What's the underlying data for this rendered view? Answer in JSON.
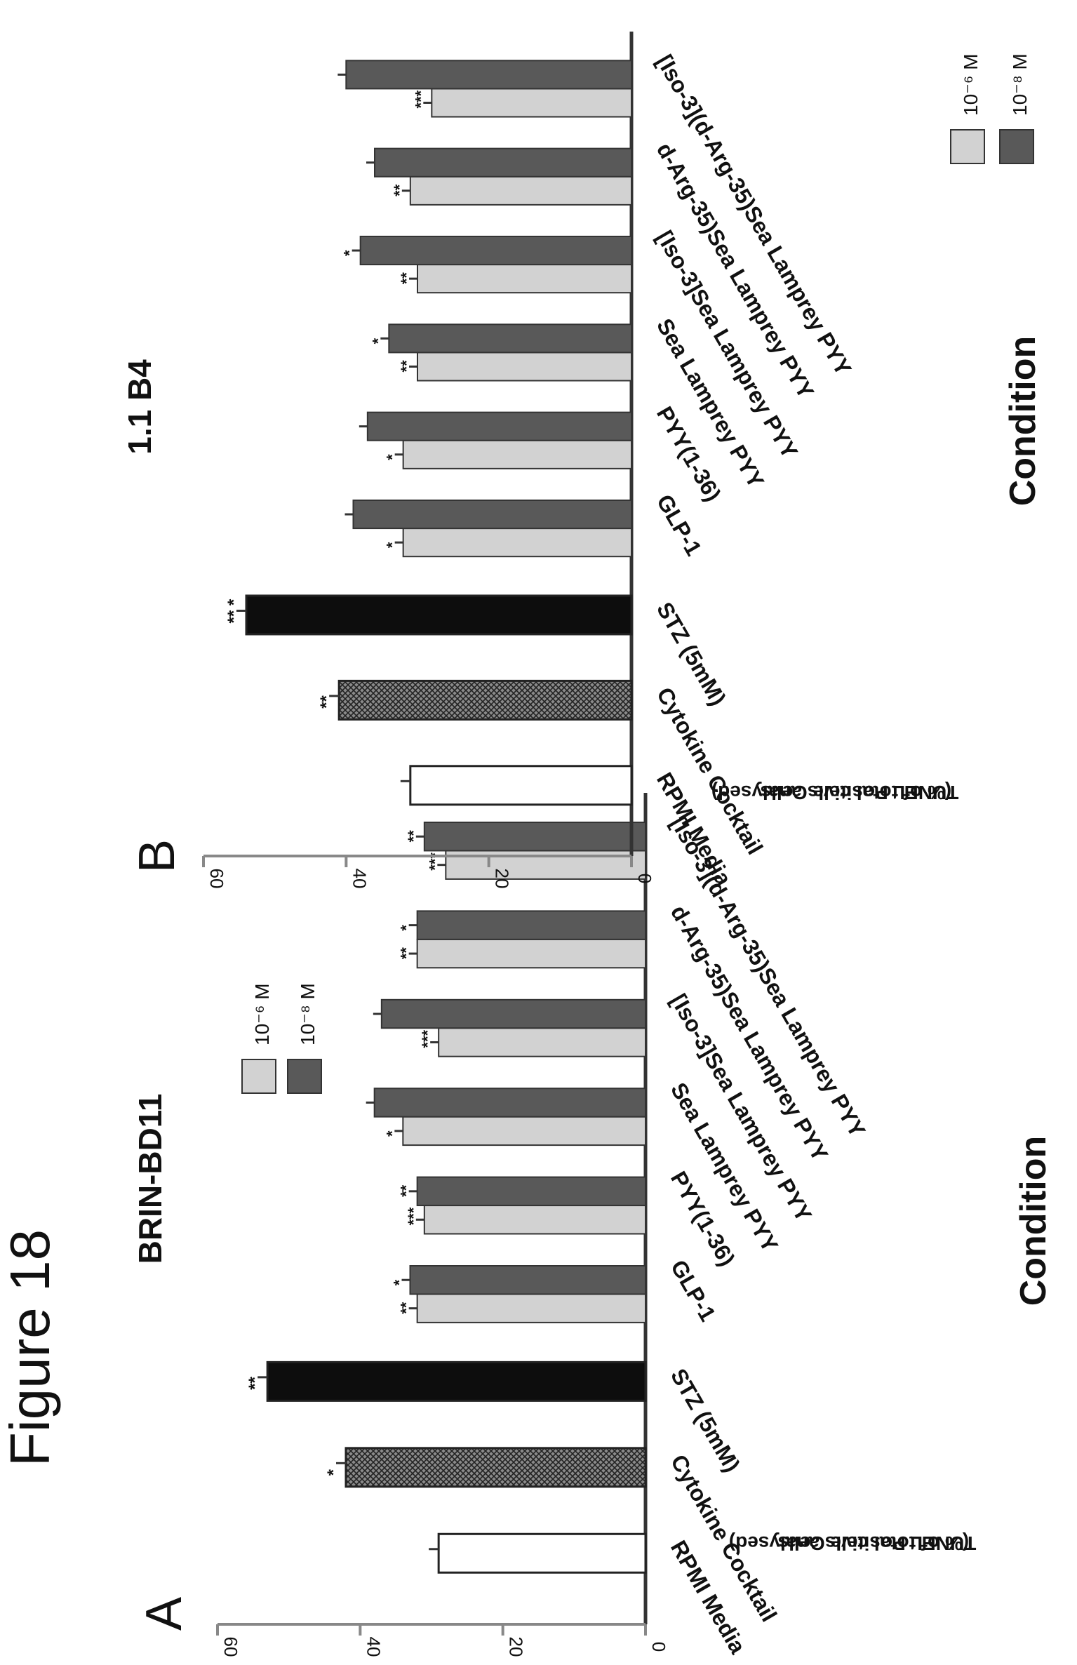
{
  "figure_title": "Figure 18",
  "legend_labels": [
    "10⁻⁶ M",
    "10⁻⁸ M"
  ],
  "chart_data": [
    {
      "type": "bar",
      "panel_label": "A",
      "title": "BRIN-BD11",
      "xlabel": "Condition",
      "ylabel_line1": "TUNEL Positive Cells",
      "ylabel_line2": "(% of total cells analysed)",
      "ylim": [
        0,
        60
      ],
      "yticks": [
        "0",
        "20",
        "40",
        "60"
      ],
      "grid": false,
      "orientation": "rotated 90° clockwise",
      "controls": [
        {
          "category": "RPMI Media",
          "value": 29,
          "sig": "",
          "fill": "white"
        },
        {
          "category": "Cytokine Cocktail",
          "value": 42,
          "sig": "*",
          "fill": "hatched"
        },
        {
          "category": "STZ (5mM)",
          "value": 53,
          "sig": "**",
          "fill": "black"
        }
      ],
      "categories": [
        "GLP-1",
        "PYY(1-36)",
        "Sea Lamprey PYY",
        "[Iso-3]Sea Lamprey PYY",
        "d-Arg-35)Sea Lamprey PYY",
        "[Iso-3](d-Arg-35)Sea Lamprey PYY"
      ],
      "series": [
        {
          "name": "10⁻⁶ M",
          "color": "#d2d2d2",
          "values": [
            32,
            31,
            34,
            29,
            32,
            28
          ],
          "sig": [
            "**",
            "***",
            "*",
            "***",
            "**",
            "***"
          ]
        },
        {
          "name": "10⁻⁸ M",
          "color": "#595959",
          "values": [
            33,
            32,
            38,
            37,
            32,
            31
          ],
          "sig": [
            "*",
            "**",
            "",
            "",
            "*",
            "**"
          ]
        }
      ]
    },
    {
      "type": "bar",
      "panel_label": "B",
      "title": "1.1 B4",
      "xlabel": "Condition",
      "ylabel_line1": "TUNEL Positive Cells",
      "ylabel_line2": "(% of total cells analysed)",
      "ylim": [
        0,
        60
      ],
      "yticks": [
        "0",
        "20",
        "40",
        "60"
      ],
      "grid": false,
      "orientation": "rotated 90° clockwise",
      "controls": [
        {
          "category": "RPMI Media",
          "value": 31,
          "sig": "",
          "fill": "white"
        },
        {
          "category": "Cytokine Cocktail",
          "value": 41,
          "sig": "**",
          "fill": "hatched"
        },
        {
          "category": "STZ (5mM)",
          "value": 54,
          "sig": "**\n*",
          "fill": "black"
        }
      ],
      "categories": [
        "GLP-1",
        "PYY(1-36)",
        "Sea Lamprey PYY",
        "[Iso-3]Sea Lamprey PYY",
        "d-Arg-35)Sea Lamprey PYY",
        "[Iso-3](d-Arg-35)Sea Lamprey PYY"
      ],
      "series": [
        {
          "name": "10⁻⁶ M",
          "color": "#d2d2d2",
          "values": [
            32,
            32,
            30,
            30,
            31,
            28
          ],
          "sig": [
            "*",
            "*",
            "**",
            "**",
            "**",
            "***"
          ]
        },
        {
          "name": "10⁻⁸ M",
          "color": "#595959",
          "values": [
            39,
            37,
            34,
            38,
            36,
            40
          ],
          "sig": [
            "",
            "",
            "*",
            "*",
            "",
            ""
          ]
        }
      ]
    }
  ]
}
